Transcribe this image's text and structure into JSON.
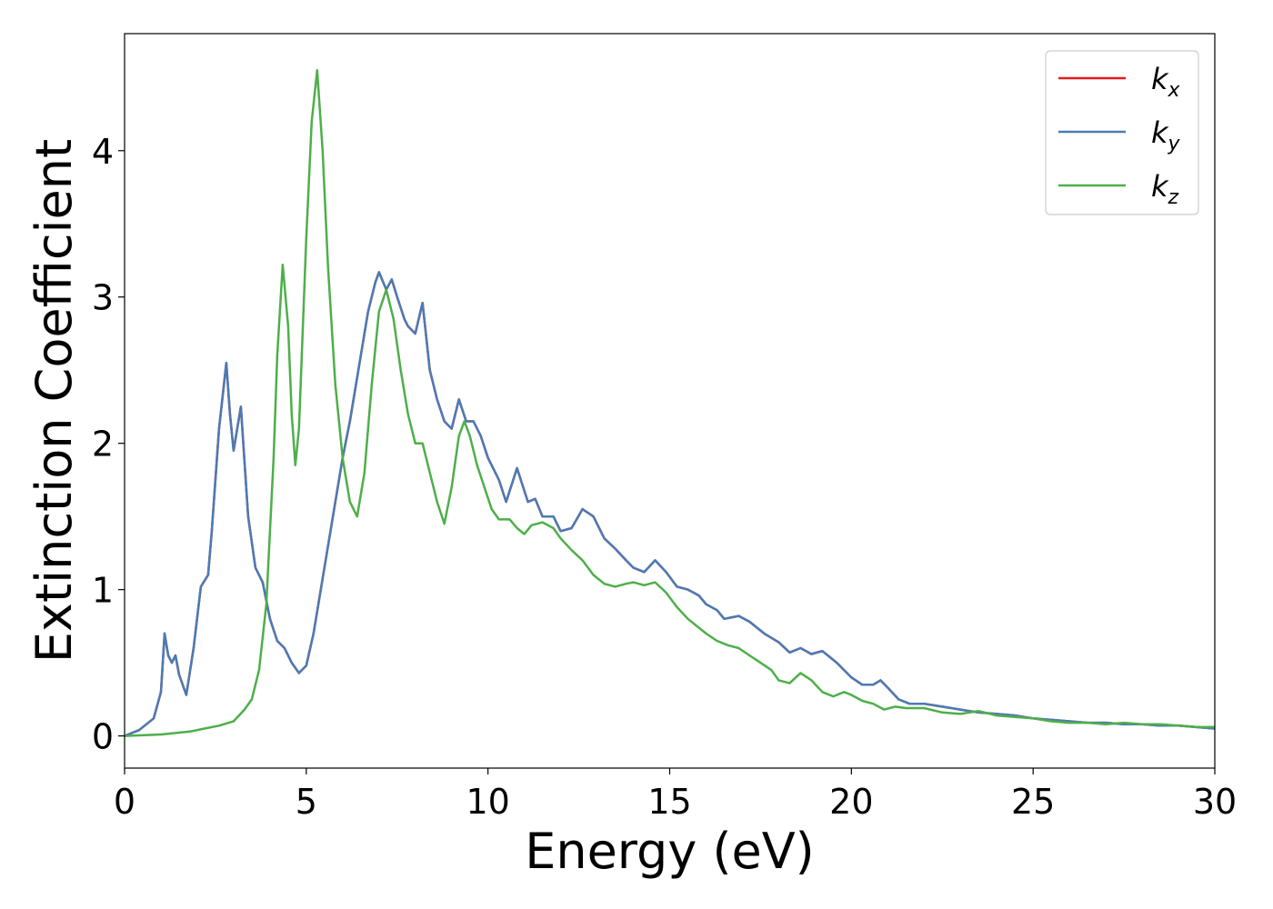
{
  "chart_data": {
    "type": "line",
    "xlabel": "Energy (eV)",
    "ylabel": "Extinction Coefficient",
    "xlim": [
      0,
      30
    ],
    "ylim": [
      -0.22,
      4.8
    ],
    "xticks": [
      0,
      5,
      10,
      15,
      20,
      25,
      30
    ],
    "xtick_labels": [
      "0",
      "5",
      "10",
      "15",
      "20",
      "25",
      "30"
    ],
    "yticks": [
      0,
      1,
      2,
      3,
      4
    ],
    "ytick_labels": [
      "0",
      "1",
      "2",
      "3",
      "4"
    ],
    "grid": false,
    "legend_position": "top-right",
    "series": [
      {
        "name": "k_x",
        "label_base": "k",
        "label_sub": "x",
        "color": "#e41a1c",
        "x": [
          0,
          0.4,
          0.8,
          1.0,
          1.1,
          1.2,
          1.3,
          1.4,
          1.5,
          1.7,
          1.9,
          2.1,
          2.3,
          2.4,
          2.6,
          2.8,
          2.9,
          3.0,
          3.1,
          3.2,
          3.4,
          3.6,
          3.8,
          4.0,
          4.2,
          4.4,
          4.6,
          4.8,
          5.0,
          5.2,
          5.4,
          5.6,
          5.8,
          6.0,
          6.2,
          6.5,
          6.7,
          6.9,
          7.0,
          7.2,
          7.35,
          7.5,
          7.7,
          7.8,
          8.0,
          8.2,
          8.4,
          8.6,
          8.8,
          9.0,
          9.2,
          9.4,
          9.6,
          9.8,
          10.0,
          10.3,
          10.5,
          10.8,
          11.1,
          11.3,
          11.5,
          11.8,
          12.0,
          12.3,
          12.6,
          12.9,
          13.2,
          13.5,
          13.8,
          14.0,
          14.3,
          14.6,
          14.9,
          15.2,
          15.5,
          15.8,
          16.0,
          16.3,
          16.5,
          16.9,
          17.2,
          17.6,
          18.0,
          18.3,
          18.6,
          18.9,
          19.2,
          19.6,
          20.0,
          20.3,
          20.6,
          20.8,
          21.0,
          21.3,
          21.6,
          22.0,
          22.5,
          23.0,
          23.5,
          24.0,
          24.5,
          25.0,
          25.5,
          26.0,
          26.5,
          27.0,
          27.5,
          28.0,
          28.5,
          29.0,
          29.5,
          30.0
        ],
        "y": [
          0,
          0.04,
          0.12,
          0.3,
          0.7,
          0.55,
          0.5,
          0.55,
          0.42,
          0.28,
          0.6,
          1.02,
          1.1,
          1.4,
          2.1,
          2.55,
          2.2,
          1.95,
          2.1,
          2.25,
          1.5,
          1.15,
          1.05,
          0.8,
          0.65,
          0.6,
          0.5,
          0.43,
          0.48,
          0.7,
          1.0,
          1.3,
          1.6,
          1.9,
          2.15,
          2.6,
          2.9,
          3.1,
          3.17,
          3.05,
          3.12,
          3.0,
          2.85,
          2.8,
          2.75,
          2.96,
          2.5,
          2.3,
          2.15,
          2.1,
          2.3,
          2.15,
          2.15,
          2.05,
          1.9,
          1.75,
          1.6,
          1.83,
          1.6,
          1.62,
          1.5,
          1.5,
          1.4,
          1.42,
          1.55,
          1.5,
          1.35,
          1.28,
          1.2,
          1.15,
          1.12,
          1.2,
          1.12,
          1.02,
          1.0,
          0.96,
          0.9,
          0.86,
          0.8,
          0.82,
          0.78,
          0.7,
          0.64,
          0.57,
          0.6,
          0.56,
          0.58,
          0.5,
          0.4,
          0.35,
          0.35,
          0.38,
          0.33,
          0.25,
          0.22,
          0.22,
          0.2,
          0.18,
          0.16,
          0.15,
          0.14,
          0.12,
          0.11,
          0.1,
          0.09,
          0.09,
          0.08,
          0.08,
          0.07,
          0.07,
          0.06,
          0.05
        ]
      },
      {
        "name": "k_y",
        "label_base": "k",
        "label_sub": "y",
        "color": "#4a7bb5",
        "x": [
          0,
          0.4,
          0.8,
          1.0,
          1.1,
          1.2,
          1.3,
          1.4,
          1.5,
          1.7,
          1.9,
          2.1,
          2.3,
          2.4,
          2.6,
          2.8,
          2.9,
          3.0,
          3.1,
          3.2,
          3.4,
          3.6,
          3.8,
          4.0,
          4.2,
          4.4,
          4.6,
          4.8,
          5.0,
          5.2,
          5.4,
          5.6,
          5.8,
          6.0,
          6.2,
          6.5,
          6.7,
          6.9,
          7.0,
          7.2,
          7.35,
          7.5,
          7.7,
          7.8,
          8.0,
          8.2,
          8.4,
          8.6,
          8.8,
          9.0,
          9.2,
          9.4,
          9.6,
          9.8,
          10.0,
          10.3,
          10.5,
          10.8,
          11.1,
          11.3,
          11.5,
          11.8,
          12.0,
          12.3,
          12.6,
          12.9,
          13.2,
          13.5,
          13.8,
          14.0,
          14.3,
          14.6,
          14.9,
          15.2,
          15.5,
          15.8,
          16.0,
          16.3,
          16.5,
          16.9,
          17.2,
          17.6,
          18.0,
          18.3,
          18.6,
          18.9,
          19.2,
          19.6,
          20.0,
          20.3,
          20.6,
          20.8,
          21.0,
          21.3,
          21.6,
          22.0,
          22.5,
          23.0,
          23.5,
          24.0,
          24.5,
          25.0,
          25.5,
          26.0,
          26.5,
          27.0,
          27.5,
          28.0,
          28.5,
          29.0,
          29.5,
          30.0
        ],
        "y": [
          0,
          0.04,
          0.12,
          0.3,
          0.7,
          0.55,
          0.5,
          0.55,
          0.42,
          0.28,
          0.6,
          1.02,
          1.1,
          1.4,
          2.1,
          2.55,
          2.2,
          1.95,
          2.1,
          2.25,
          1.5,
          1.15,
          1.05,
          0.8,
          0.65,
          0.6,
          0.5,
          0.43,
          0.48,
          0.7,
          1.0,
          1.3,
          1.6,
          1.9,
          2.15,
          2.6,
          2.9,
          3.1,
          3.17,
          3.05,
          3.12,
          3.0,
          2.85,
          2.8,
          2.75,
          2.96,
          2.5,
          2.3,
          2.15,
          2.1,
          2.3,
          2.15,
          2.15,
          2.05,
          1.9,
          1.75,
          1.6,
          1.83,
          1.6,
          1.62,
          1.5,
          1.5,
          1.4,
          1.42,
          1.55,
          1.5,
          1.35,
          1.28,
          1.2,
          1.15,
          1.12,
          1.2,
          1.12,
          1.02,
          1.0,
          0.96,
          0.9,
          0.86,
          0.8,
          0.82,
          0.78,
          0.7,
          0.64,
          0.57,
          0.6,
          0.56,
          0.58,
          0.5,
          0.4,
          0.35,
          0.35,
          0.38,
          0.33,
          0.25,
          0.22,
          0.22,
          0.2,
          0.18,
          0.16,
          0.15,
          0.14,
          0.12,
          0.11,
          0.1,
          0.09,
          0.09,
          0.08,
          0.08,
          0.07,
          0.07,
          0.06,
          0.05
        ]
      },
      {
        "name": "k_z",
        "label_base": "k",
        "label_sub": "z",
        "color": "#4daf4a",
        "x": [
          0,
          1.0,
          1.8,
          2.2,
          2.6,
          3.0,
          3.3,
          3.5,
          3.7,
          3.9,
          4.1,
          4.2,
          4.35,
          4.5,
          4.6,
          4.7,
          4.8,
          5.0,
          5.15,
          5.3,
          5.45,
          5.6,
          5.8,
          6.0,
          6.2,
          6.4,
          6.6,
          6.8,
          7.0,
          7.2,
          7.4,
          7.6,
          7.8,
          8.0,
          8.2,
          8.4,
          8.6,
          8.8,
          9.0,
          9.2,
          9.35,
          9.5,
          9.7,
          9.9,
          10.1,
          10.3,
          10.6,
          10.8,
          11.0,
          11.2,
          11.5,
          11.8,
          12.0,
          12.3,
          12.6,
          12.9,
          13.2,
          13.5,
          13.8,
          14.0,
          14.3,
          14.6,
          14.9,
          15.2,
          15.5,
          15.8,
          16.0,
          16.3,
          16.6,
          16.9,
          17.2,
          17.5,
          17.8,
          18.0,
          18.3,
          18.6,
          18.9,
          19.2,
          19.5,
          19.8,
          20.0,
          20.3,
          20.6,
          20.9,
          21.2,
          21.5,
          22.0,
          22.5,
          23.0,
          23.5,
          24.0,
          24.5,
          25.0,
          25.5,
          26.0,
          26.5,
          27.0,
          27.5,
          28.0,
          28.5,
          29.0,
          29.5,
          30.0
        ],
        "y": [
          0,
          0.01,
          0.03,
          0.05,
          0.07,
          0.1,
          0.18,
          0.25,
          0.45,
          0.9,
          1.9,
          2.6,
          3.22,
          2.8,
          2.2,
          1.85,
          2.1,
          3.4,
          4.2,
          4.55,
          4.0,
          3.2,
          2.4,
          1.9,
          1.6,
          1.5,
          1.8,
          2.4,
          2.9,
          3.05,
          2.85,
          2.5,
          2.2,
          2.0,
          2.0,
          1.8,
          1.6,
          1.45,
          1.7,
          2.05,
          2.15,
          2.05,
          1.85,
          1.7,
          1.55,
          1.48,
          1.48,
          1.42,
          1.38,
          1.44,
          1.46,
          1.42,
          1.35,
          1.27,
          1.2,
          1.1,
          1.04,
          1.02,
          1.04,
          1.05,
          1.03,
          1.05,
          0.98,
          0.88,
          0.8,
          0.74,
          0.7,
          0.65,
          0.62,
          0.6,
          0.55,
          0.5,
          0.45,
          0.38,
          0.36,
          0.43,
          0.38,
          0.3,
          0.27,
          0.3,
          0.28,
          0.24,
          0.22,
          0.18,
          0.2,
          0.19,
          0.19,
          0.16,
          0.15,
          0.17,
          0.14,
          0.13,
          0.12,
          0.1,
          0.09,
          0.09,
          0.08,
          0.09,
          0.08,
          0.08,
          0.07,
          0.06,
          0.06
        ]
      }
    ]
  }
}
